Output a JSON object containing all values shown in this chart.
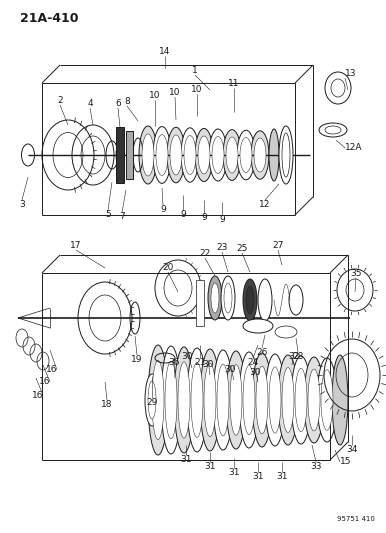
{
  "title": "21A-410",
  "watermark": "95751 410",
  "bg_color": "#ffffff",
  "title_fontsize": 9,
  "label_fontsize": 6.5,
  "fig_width": 3.86,
  "fig_height": 5.33,
  "dpi": 100
}
